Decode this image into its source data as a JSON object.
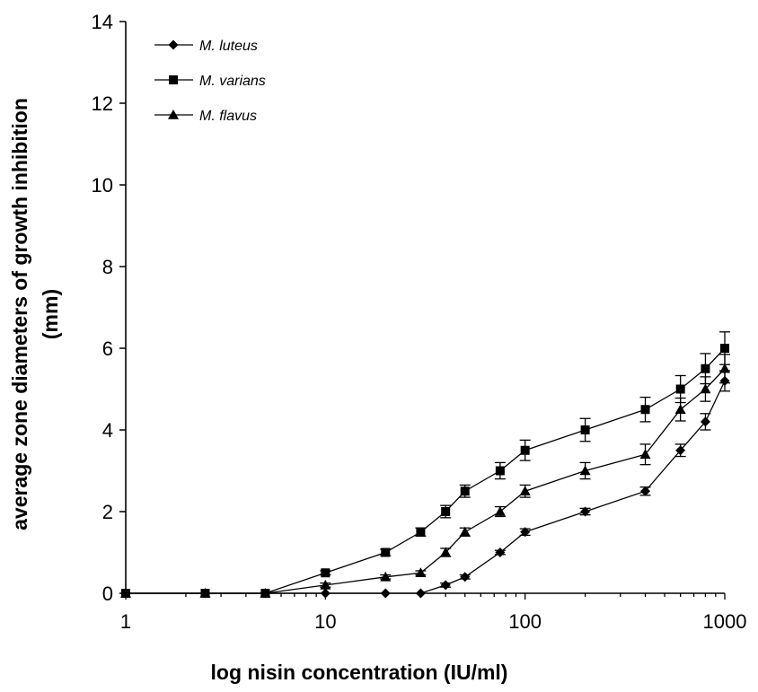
{
  "chart_data": {
    "type": "line",
    "xlabel": "log nisin concentration (IU/ml)",
    "ylabel_line1": "average zone diameters of growth inhibition",
    "ylabel_line2": "(mm)",
    "x_scale": "log",
    "xlim": [
      1,
      1000
    ],
    "ylim": [
      0,
      14
    ],
    "x_ticks": [
      1,
      10,
      100,
      1000
    ],
    "x_tick_labels": [
      "1",
      "10",
      "100",
      "1000"
    ],
    "y_ticks": [
      0,
      2,
      4,
      6,
      8,
      10,
      12,
      14
    ],
    "y_tick_labels": [
      "0",
      "2",
      "4",
      "6",
      "8",
      "10",
      "12",
      "14"
    ],
    "grid": false,
    "legend_position": "top-left",
    "x": [
      1,
      2.5,
      5,
      10,
      20,
      30,
      40,
      50,
      75,
      100,
      200,
      400,
      600,
      800,
      1000
    ],
    "series": [
      {
        "name": "M. luteus",
        "marker": "diamond",
        "y": [
          0,
          0,
          0,
          0,
          0,
          0,
          0.2,
          0.4,
          1.0,
          1.5,
          2.0,
          2.5,
          3.5,
          4.2,
          5.2
        ],
        "err": [
          0,
          0,
          0,
          0,
          0,
          0,
          0.05,
          0.05,
          0.05,
          0.08,
          0.08,
          0.1,
          0.15,
          0.2,
          0.25
        ]
      },
      {
        "name": "M. varians",
        "marker": "square",
        "y": [
          0,
          0,
          0,
          0.5,
          1.0,
          1.5,
          2.0,
          2.5,
          3.0,
          3.5,
          4.0,
          4.5,
          5.0,
          5.5,
          6.0
        ],
        "err": [
          0,
          0,
          0,
          0.05,
          0.08,
          0.1,
          0.15,
          0.15,
          0.2,
          0.25,
          0.28,
          0.3,
          0.33,
          0.37,
          0.4
        ]
      },
      {
        "name": "M. flavus",
        "marker": "triangle",
        "y": [
          0,
          0,
          0,
          0.2,
          0.4,
          0.5,
          1.0,
          1.5,
          2.0,
          2.5,
          3.0,
          3.4,
          4.5,
          5.0,
          5.5
        ],
        "err": [
          0,
          0,
          0,
          0.05,
          0.05,
          0.05,
          0.1,
          0.1,
          0.12,
          0.15,
          0.2,
          0.25,
          0.28,
          0.3,
          0.35
        ]
      }
    ]
  }
}
